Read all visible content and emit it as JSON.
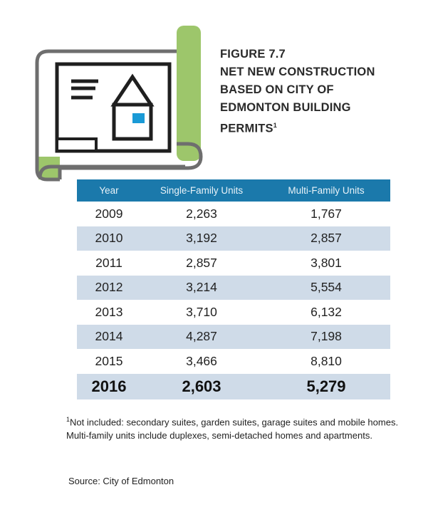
{
  "figure": {
    "label": "FIGURE 7.7",
    "title_lines": [
      "NET NEW CONSTRUCTION",
      "BASED ON CITY OF",
      "EDMONTON BUILDING",
      "PERMITS"
    ],
    "title_sup": "1"
  },
  "icon": {
    "name": "building-permit-blueprint-icon",
    "accent": "#9dc66b",
    "window": "#1a9ad6"
  },
  "table": {
    "header": [
      "Year",
      "Single-Family Units",
      "Multi-Family Units"
    ],
    "rows": [
      [
        "2009",
        "2,263",
        "1,767"
      ],
      [
        "2010",
        "3,192",
        "2,857"
      ],
      [
        "2011",
        "2,857",
        "3,801"
      ],
      [
        "2012",
        "3,214",
        "5,554"
      ],
      [
        "2013",
        "3,710",
        "6,132"
      ],
      [
        "2014",
        "4,287",
        "7,198"
      ],
      [
        "2015",
        "3,466",
        "8,810"
      ],
      [
        "2016",
        "2,603",
        "5,279"
      ]
    ],
    "header_color": "#1b79ab",
    "stripe_color": "#cfdbe8"
  },
  "footnote": {
    "marker": "1",
    "text": "Not  included: secondary suites, garden suites, garage suites and mobile homes. Multi-family units include duplexes, semi-detached homes and apartments."
  },
  "source": "Source: City of Edmonton"
}
